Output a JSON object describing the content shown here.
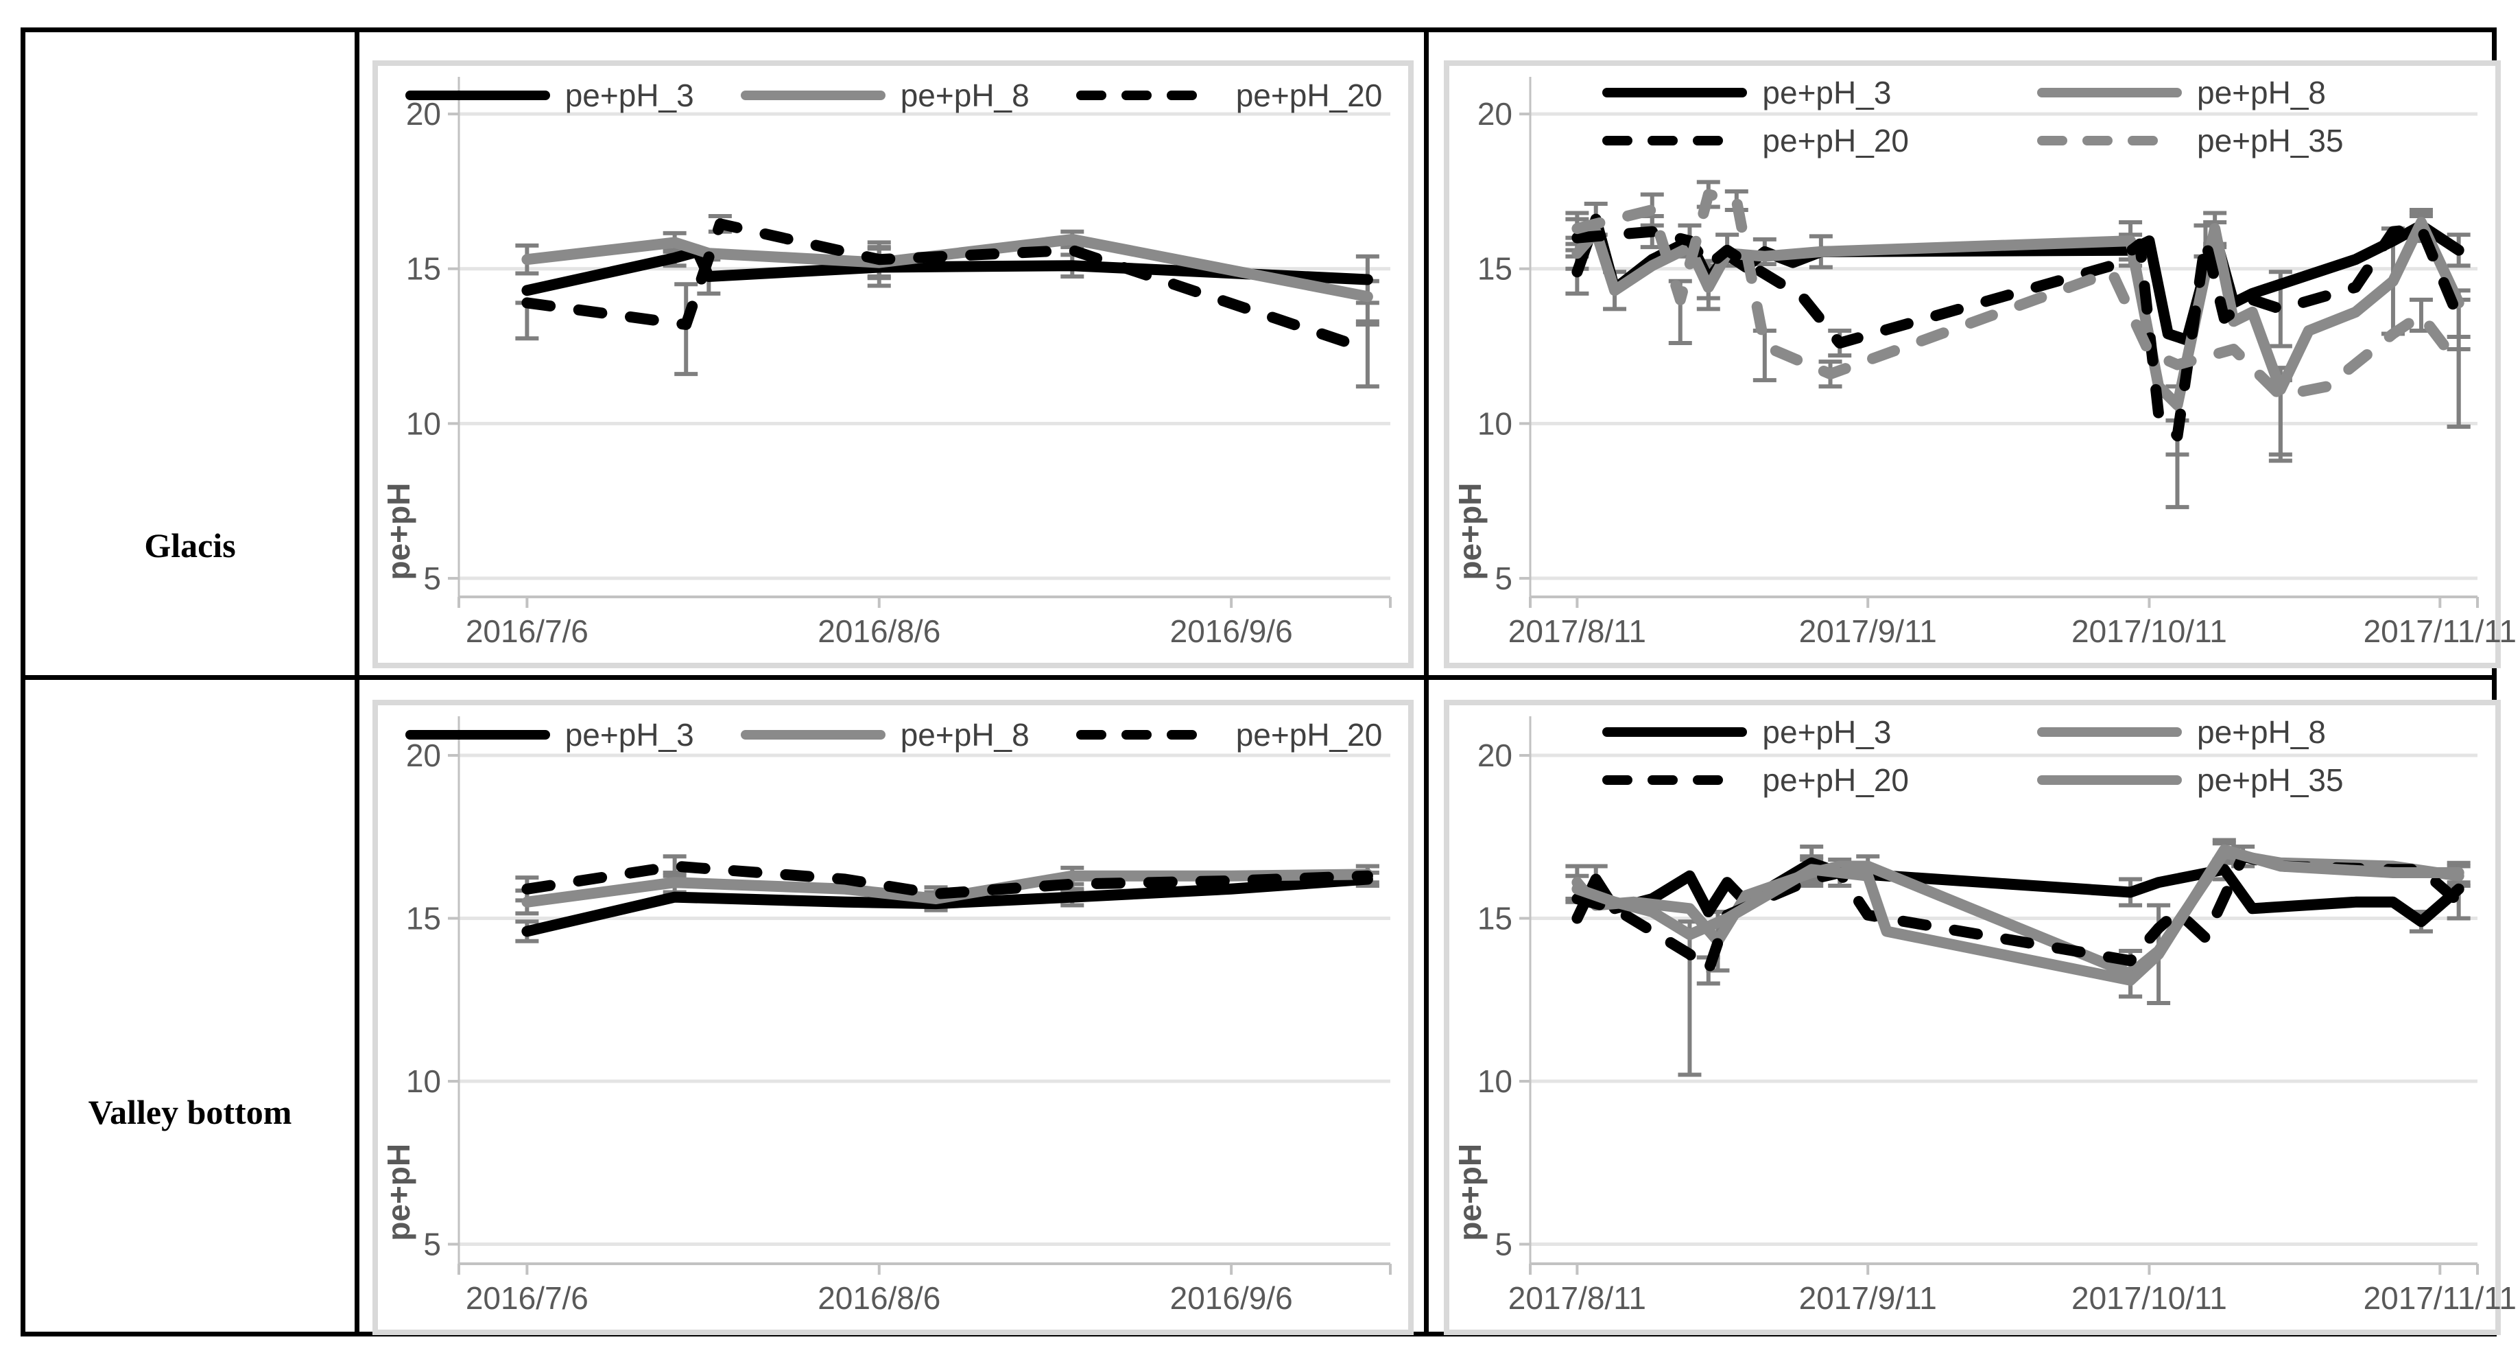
{
  "table": {
    "rows": [
      {
        "label": "Glacis"
      },
      {
        "label": "Valley bottom"
      }
    ]
  },
  "styles": {
    "table_border_color": "#000000",
    "frame_color": "#d9d9d9",
    "grid_color": "#e4e4e4",
    "axis_color": "#c2c2c2",
    "tick_text_color": "#595959",
    "legend_text_color": "#404040",
    "error_bar_color": "#7f7f7f",
    "black_series_color": "#000000",
    "gray_series_color": "#8a8a8a"
  },
  "chart_data": [
    {
      "type": "line",
      "title": "",
      "row": "Glacis",
      "xlabel": "",
      "ylabel": "pe+pH",
      "ylim": [
        4.4,
        21.2
      ],
      "yticks": [
        5,
        10,
        15,
        20
      ],
      "xlim": [
        -6,
        76
      ],
      "xticks": [
        {
          "x": 0,
          "label": "2016/7/6"
        },
        {
          "x": 31,
          "label": "2016/8/6"
        },
        {
          "x": 62,
          "label": "2016/9/6"
        }
      ],
      "legend": "one",
      "grid": true,
      "series": [
        {
          "name": "pe+pH_3",
          "color": "#000000",
          "dash": false,
          "points": [
            [
              0,
              14.3
            ],
            [
              13,
              15.35,
              0.25
            ],
            [
              15,
              15.55
            ],
            [
              16,
              14.75,
              0.55
            ],
            [
              31,
              15.05,
              0.6
            ],
            [
              48,
              15.1,
              0.35
            ],
            [
              74,
              14.65,
              0.75
            ]
          ]
        },
        {
          "name": "pe+pH_8",
          "color": "#8a8a8a",
          "dash": false,
          "points": [
            [
              0,
              15.3,
              0.45
            ],
            [
              13,
              15.85,
              0.3
            ],
            [
              16,
              15.5
            ],
            [
              31,
              15.2,
              0.5
            ],
            [
              48,
              15.95,
              0.25
            ],
            [
              74,
              14.1,
              0.5,
              0.9
            ]
          ]
        },
        {
          "name": "pe+pH_20",
          "color": "#000000",
          "dash": true,
          "points": [
            [
              0,
              13.9,
              0,
              1.15
            ],
            [
              14,
              13.2,
              1.3,
              1.6
            ],
            [
              17,
              16.45,
              0.25
            ],
            [
              31,
              15.3,
              0.55
            ],
            [
              48,
              15.6
            ],
            [
              74,
              12.4,
              0.9,
              1.2
            ]
          ]
        }
      ]
    },
    {
      "type": "line",
      "title": "",
      "row": "Glacis",
      "xlabel": "",
      "ylabel": "pe+pH",
      "ylim": [
        4.4,
        21.2
      ],
      "yticks": [
        5,
        10,
        15,
        20
      ],
      "xlim": [
        -5,
        96
      ],
      "xticks": [
        {
          "x": 0,
          "label": "2017/8/11"
        },
        {
          "x": 31,
          "label": "2017/9/11"
        },
        {
          "x": 61,
          "label": "2017/10/11"
        },
        {
          "x": 92,
          "label": "2017/11/11"
        }
      ],
      "legend": "two",
      "grid": true,
      "series": [
        {
          "name": "pe+pH_3",
          "color": "#000000",
          "dash": false,
          "points": [
            [
              0,
              14.9,
              0.7
            ],
            [
              2,
              16.6,
              0.5
            ],
            [
              4,
              14.35
            ],
            [
              8,
              15.3
            ],
            [
              12,
              15.9,
              0.5
            ],
            [
              14,
              14.65,
              0.6
            ],
            [
              16,
              15.45
            ],
            [
              18,
              15.05
            ],
            [
              20,
              15.55,
              0.4
            ],
            [
              23,
              15.2
            ],
            [
              26,
              15.55,
              0.5
            ],
            [
              59,
              15.6,
              0.5
            ],
            [
              61,
              15.9
            ],
            [
              63,
              12.9
            ],
            [
              65,
              12.7
            ],
            [
              68,
              16.1,
              0.4
            ],
            [
              70,
              13.9
            ],
            [
              72,
              14.2
            ],
            [
              83,
              15.3
            ],
            [
              87,
              15.9
            ],
            [
              90,
              16.4,
              0.4
            ],
            [
              94,
              15.6,
              0.5
            ]
          ]
        },
        {
          "name": "pe+pH_8",
          "color": "#8a8a8a",
          "dash": false,
          "points": [
            [
              0,
              15.5,
              0.5
            ],
            [
              2,
              16.2
            ],
            [
              4,
              14.3,
              0.6
            ],
            [
              8,
              15.1
            ],
            [
              12,
              15.7
            ],
            [
              14,
              14.4,
              0.7
            ],
            [
              16,
              15.5
            ],
            [
              20,
              15.4
            ],
            [
              26,
              15.55
            ],
            [
              59,
              15.9,
              0.6
            ],
            [
              62,
              11.2
            ],
            [
              64,
              10.6,
              0.6,
              3.3
            ],
            [
              68,
              16.3,
              0.5
            ],
            [
              70,
              13.3
            ],
            [
              72,
              13.6
            ],
            [
              75,
              11.1,
              0.7,
              2.3
            ],
            [
              78,
              13.0
            ],
            [
              83,
              13.6
            ],
            [
              87,
              14.6,
              1.7
            ],
            [
              90,
              16.5,
              0.4
            ],
            [
              94,
              13.9,
              0.4,
              4.0
            ]
          ]
        },
        {
          "name": "pe+pH_20",
          "color": "#000000",
          "dash": true,
          "points": [
            [
              0,
              16.0,
              0.6
            ],
            [
              4,
              16.1
            ],
            [
              8,
              16.2,
              0.5
            ],
            [
              12,
              15.9
            ],
            [
              14,
              15.1
            ],
            [
              16,
              15.6,
              0.5
            ],
            [
              18,
              15.2
            ],
            [
              24,
              14.1
            ],
            [
              28,
              12.6,
              0.4
            ],
            [
              57,
              15.1
            ],
            [
              60,
              15.8
            ],
            [
              62,
              10.3
            ],
            [
              64,
              9.6,
              0.5,
              0.6
            ],
            [
              67,
              15.9,
              0.5
            ],
            [
              69,
              13.4
            ],
            [
              72,
              14.0
            ],
            [
              75,
              13.7,
              1.2
            ],
            [
              83,
              14.4
            ],
            [
              87,
              16.2
            ],
            [
              90,
              16.3,
              0.4
            ],
            [
              94,
              13.4,
              0.6
            ]
          ]
        },
        {
          "name": "pe+pH_35",
          "color": "#8a8a8a",
          "dash": true,
          "points": [
            [
              0,
              16.3,
              0.5
            ],
            [
              4,
              16.6
            ],
            [
              8,
              16.9,
              0.5
            ],
            [
              11,
              14.0,
              0.6,
              1.4
            ],
            [
              14,
              17.4,
              0.4
            ],
            [
              17,
              17.2,
              0.3
            ],
            [
              20,
              12.5,
              0.5,
              1.1
            ],
            [
              27,
              11.6,
              0.4
            ],
            [
              57,
              14.9
            ],
            [
              61,
              12.3
            ],
            [
              64,
              11.9
            ],
            [
              70,
              12.4
            ],
            [
              75,
              10.9,
              0.5,
              1.9
            ],
            [
              80,
              11.2
            ],
            [
              87,
              12.9
            ],
            [
              90,
              13.5,
              0.5
            ],
            [
              94,
              11.9,
              0.5,
              2.0
            ]
          ]
        }
      ]
    },
    {
      "type": "line",
      "title": "",
      "row": "Valley bottom",
      "xlabel": "",
      "ylabel": "pe+pH",
      "ylim": [
        4.4,
        21.2
      ],
      "yticks": [
        5,
        10,
        15,
        20
      ],
      "xlim": [
        -6,
        76
      ],
      "xticks": [
        {
          "x": 0,
          "label": "2016/7/6"
        },
        {
          "x": 31,
          "label": "2016/8/6"
        },
        {
          "x": 62,
          "label": "2016/9/6"
        }
      ],
      "legend": "one",
      "grid": true,
      "series": [
        {
          "name": "pe+pH_3",
          "color": "#000000",
          "dash": false,
          "points": [
            [
              0,
              14.6,
              0.3
            ],
            [
              13,
              15.65
            ],
            [
              28,
              15.5
            ],
            [
              36,
              15.45,
              0.2
            ],
            [
              48,
              15.65,
              0.25
            ],
            [
              62,
              15.9
            ],
            [
              74,
              16.2,
              0.2
            ]
          ]
        },
        {
          "name": "pe+pH_8",
          "color": "#8a8a8a",
          "dash": false,
          "points": [
            [
              0,
              15.5,
              0.35
            ],
            [
              13,
              16.1,
              0.3
            ],
            [
              28,
              15.9
            ],
            [
              36,
              15.6,
              0.2
            ],
            [
              48,
              16.3,
              0.25
            ],
            [
              62,
              16.3
            ],
            [
              74,
              16.35,
              0.25
            ]
          ]
        },
        {
          "name": "pe+pH_20",
          "color": "#000000",
          "dash": true,
          "points": [
            [
              0,
              15.9,
              0.35
            ],
            [
              13,
              16.6,
              0.3
            ],
            [
              28,
              16.2
            ],
            [
              36,
              15.75,
              0.2
            ],
            [
              48,
              16.05,
              0.2
            ],
            [
              62,
              16.15
            ],
            [
              74,
              16.3,
              0.3
            ]
          ]
        }
      ]
    },
    {
      "type": "line",
      "title": "",
      "row": "Valley bottom",
      "xlabel": "",
      "ylabel": "pe+pH",
      "ylim": [
        4.4,
        21.2
      ],
      "yticks": [
        5,
        10,
        15,
        20
      ],
      "xlim": [
        -5,
        96
      ],
      "xticks": [
        {
          "x": 0,
          "label": "2017/8/11"
        },
        {
          "x": 31,
          "label": "2017/9/11"
        },
        {
          "x": 61,
          "label": "2017/10/11"
        },
        {
          "x": 92,
          "label": "2017/11/11"
        }
      ],
      "legend": "two",
      "grid": true,
      "series": [
        {
          "name": "pe+pH_3",
          "color": "#000000",
          "dash": false,
          "points": [
            [
              0,
              15.0
            ],
            [
              2,
              16.2,
              0.4
            ],
            [
              4,
              15.3
            ],
            [
              8,
              15.6
            ],
            [
              12,
              16.3
            ],
            [
              14,
              15.2
            ],
            [
              16,
              16.1
            ],
            [
              18,
              15.5
            ],
            [
              25,
              16.7,
              0.5
            ],
            [
              28,
              16.4
            ],
            [
              59,
              15.8,
              0.4
            ],
            [
              62,
              16.1
            ],
            [
              69,
              16.5,
              0.3
            ],
            [
              72,
              15.3
            ],
            [
              83,
              15.5
            ],
            [
              87,
              15.5
            ],
            [
              90,
              14.9,
              0.3
            ],
            [
              94,
              15.9
            ]
          ]
        },
        {
          "name": "pe+pH_8",
          "color": "#8a8a8a",
          "dash": false,
          "points": [
            [
              0,
              16.1,
              0.5
            ],
            [
              2,
              15.4
            ],
            [
              6,
              15.5
            ],
            [
              12,
              15.3
            ],
            [
              15,
              14.3,
              0.9
            ],
            [
              18,
              15.7
            ],
            [
              25,
              16.4,
              0.4
            ],
            [
              28,
              16.6
            ],
            [
              31,
              16.6,
              0.3
            ],
            [
              59,
              13.3,
              0.7
            ],
            [
              62,
              14.0
            ],
            [
              69,
              17.0,
              0.3
            ],
            [
              75,
              16.7
            ],
            [
              87,
              16.6
            ],
            [
              94,
              16.3,
              0.3
            ]
          ]
        },
        {
          "name": "pe+pH_20",
          "color": "#000000",
          "dash": true,
          "points": [
            [
              0,
              15.6
            ],
            [
              4,
              15.3
            ],
            [
              12,
              13.9
            ],
            [
              14,
              13.4,
              0.4
            ],
            [
              16,
              15.1
            ],
            [
              25,
              16.2
            ],
            [
              28,
              16.4,
              0.4
            ],
            [
              31,
              15.1
            ],
            [
              59,
              13.7
            ],
            [
              62,
              14.7
            ],
            [
              64,
              15.2
            ],
            [
              67,
              14.4
            ],
            [
              71,
              16.9,
              0.3
            ],
            [
              75,
              16.6
            ],
            [
              87,
              16.5
            ],
            [
              90,
              16.5
            ],
            [
              94,
              15.5,
              0.5
            ]
          ]
        },
        {
          "name": "pe+pH_35",
          "color": "#8a8a8a",
          "dash": false,
          "points": [
            [
              0,
              15.9,
              0.4
            ],
            [
              4,
              15.5
            ],
            [
              8,
              15.2
            ],
            [
              12,
              14.5,
              0.4,
              4.3
            ],
            [
              16,
              15.0
            ],
            [
              25,
              16.5,
              0.4
            ],
            [
              31,
              16.3
            ],
            [
              33,
              14.6
            ],
            [
              59,
              13.1,
              0.5
            ],
            [
              62,
              13.9,
              1.5
            ],
            [
              69,
              17.1,
              0.3
            ],
            [
              75,
              16.6
            ],
            [
              87,
              16.4
            ],
            [
              94,
              16.4,
              0.3
            ]
          ]
        }
      ]
    }
  ]
}
